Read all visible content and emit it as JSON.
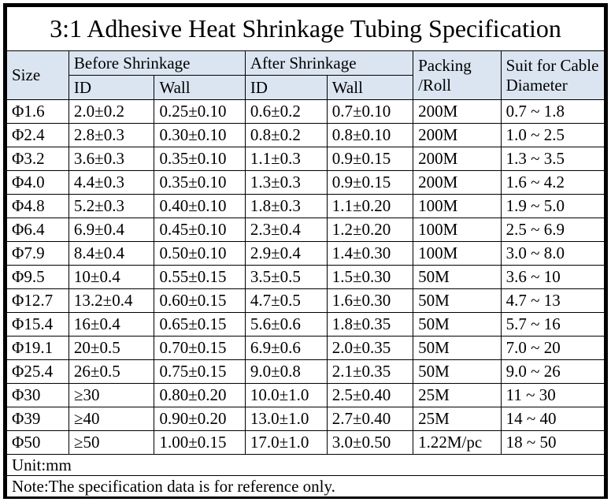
{
  "title": "3:1 Adhesive Heat Shrinkage Tubing Specification",
  "colors": {
    "header_bg": "#dbe5f1",
    "border": "#000000",
    "background": "#ffffff",
    "text": "#000000"
  },
  "table": {
    "header": {
      "size": "Size",
      "before": "Before Shrinkage",
      "after": "After Shrinkage",
      "id": "ID",
      "wall": "Wall",
      "packing": "Packing\n/Roll",
      "suit": "Suit for Cable\nDiameter"
    },
    "rows": [
      [
        "Φ1.6",
        "2.0±0.2",
        "0.25±0.10",
        "0.6±0.2",
        "0.7±0.10",
        "200M",
        "0.7 ~ 1.8"
      ],
      [
        "Φ2.4",
        "2.8±0.3",
        "0.30±0.10",
        "0.8±0.2",
        "0.8±0.10",
        "200M",
        "1.0 ~ 2.5"
      ],
      [
        "Φ3.2",
        "3.6±0.3",
        "0.35±0.10",
        "1.1±0.3",
        "0.9±0.15",
        "200M",
        "1.3 ~ 3.5"
      ],
      [
        "Φ4.0",
        "4.4±0.3",
        "0.35±0.10",
        "1.3±0.3",
        "0.9±0.15",
        "200M",
        "1.6 ~ 4.2"
      ],
      [
        "Φ4.8",
        "5.2±0.3",
        "0.40±0.10",
        "1.8±0.3",
        "1.1±0.20",
        "100M",
        "1.9 ~ 5.0"
      ],
      [
        "Φ6.4",
        "6.9±0.4",
        "0.45±0.10",
        "2.3±0.4",
        "1.2±0.20",
        "100M",
        "2.5 ~ 6.9"
      ],
      [
        "Φ7.9",
        "8.4±0.4",
        "0.50±0.10",
        "2.9±0.4",
        "1.4±0.30",
        "100M",
        "3.0 ~ 8.0"
      ],
      [
        "Φ9.5",
        "10±0.4",
        "0.55±0.15",
        "3.5±0.5",
        "1.5±0.30",
        "50M",
        "3.6 ~ 10"
      ],
      [
        "Φ12.7",
        "13.2±0.4",
        "0.60±0.15",
        "4.7±0.5",
        "1.6±0.30",
        "50M",
        "4.7 ~ 13"
      ],
      [
        "Φ15.4",
        "16±0.4",
        "0.65±0.15",
        "5.6±0.6",
        "1.8±0.35",
        "50M",
        "5.7 ~ 16"
      ],
      [
        "Φ19.1",
        "20±0.5",
        "0.70±0.15",
        "6.9±0.6",
        "2.0±0.35",
        "50M",
        "7.0 ~ 20"
      ],
      [
        "Φ25.4",
        "26±0.5",
        "0.75±0.15",
        "9.0±0.8",
        "2.1±0.35",
        "50M",
        "9.0 ~ 26"
      ],
      [
        "Φ30",
        "≥30",
        "0.80±0.20",
        "10.0±1.0",
        "2.5±0.40",
        "25M",
        "11 ~ 30"
      ],
      [
        "Φ39",
        "≥40",
        "0.90±0.20",
        "13.0±1.0",
        "2.7±0.40",
        "25M",
        "14 ~ 40"
      ],
      [
        "Φ50",
        "≥50",
        "1.00±0.15",
        "17.0±1.0",
        "3.0±0.50",
        "1.22M/pc",
        "18 ~ 50"
      ]
    ],
    "unit": "Unit:mm",
    "note": "Note:The specification data is for reference only."
  }
}
